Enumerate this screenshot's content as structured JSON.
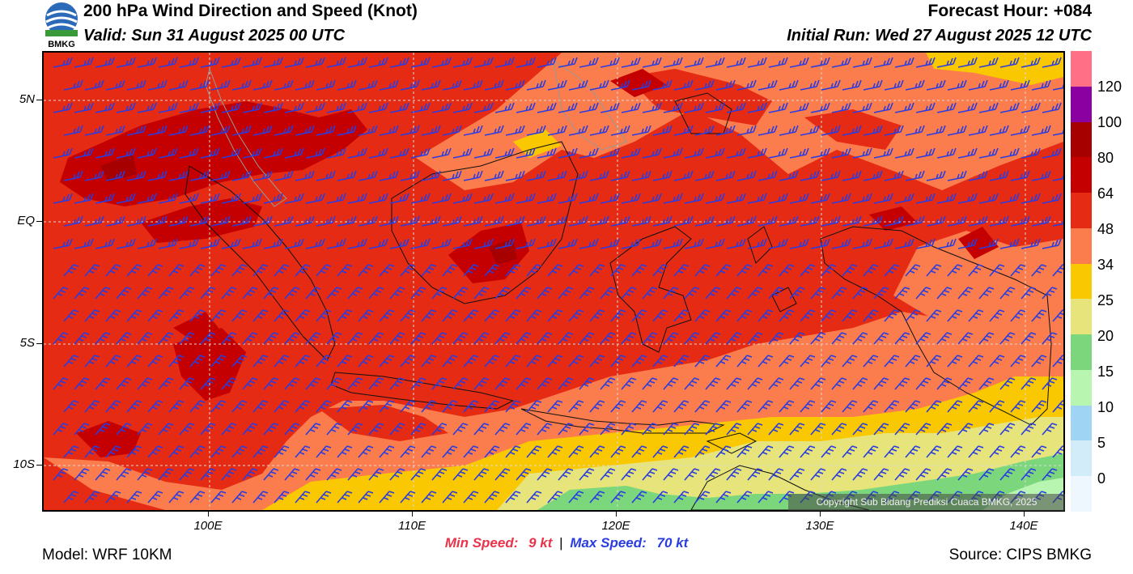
{
  "header": {
    "title": "200 hPa Wind Direction and Speed (Knot)",
    "valid": "Valid: Sun 31 August 2025 00 UTC",
    "forecast_hour": "Forecast Hour: +084",
    "initial_run": "Initial Run: Wed 27 August 2025 12 UTC",
    "logo_text": "BMKG"
  },
  "map": {
    "lat_labels": [
      "5N",
      "EQ",
      "5S",
      "10S"
    ],
    "lon_labels": [
      "100E",
      "110E",
      "120E",
      "130E",
      "140E"
    ],
    "copyright": "Copyright Sub Bidang Prediksi Cuaca BMKG, 2025"
  },
  "legend": {
    "labels": [
      "120",
      "100",
      "80",
      "64",
      "48",
      "34",
      "25",
      "20",
      "15",
      "10",
      "5",
      "0"
    ],
    "colors": [
      "#ff6f86",
      "#8a00a0",
      "#a60000",
      "#c40000",
      "#e52b14",
      "#fb7c4c",
      "#f9c800",
      "#e6e47a",
      "#7cd77c",
      "#b8f5b0",
      "#9fd4f5",
      "#d2ecfa",
      "#eef7fd"
    ]
  },
  "stats": {
    "min_label": "Min Speed:",
    "min_value": "9 kt",
    "separator": "|",
    "max_label": "Max Speed:",
    "max_value": "70 kt"
  },
  "footer": {
    "model": "Model: WRF 10KM",
    "source": "Source: CIPS BMKG"
  }
}
